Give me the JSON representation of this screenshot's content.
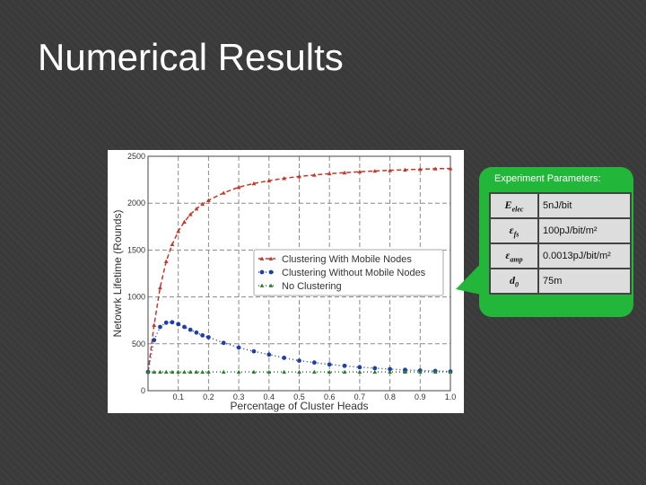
{
  "slide": {
    "title": "Numerical Results"
  },
  "params": {
    "title": "Experiment Parameters:",
    "rows": [
      {
        "symbol": "E_elec",
        "value": "5nJ/bit"
      },
      {
        "symbol": "ε_fs",
        "value": "100pJ/bit/m²"
      },
      {
        "symbol": "ε_amp",
        "value": "0.0013pJ/bit/m²"
      },
      {
        "symbol": "d_0",
        "value": "75m"
      }
    ]
  },
  "colors": {
    "background": "#3a3a3a",
    "callout": "#22b63a",
    "series_red": "#c0392b",
    "series_blue": "#1f3fa8",
    "series_green": "#2e7d32"
  },
  "chart_data": {
    "type": "line",
    "xlabel": "Percentage of Cluster Heads",
    "ylabel": "Netowrk Lifetime (Rounds)",
    "xlim": [
      0,
      1.0
    ],
    "ylim": [
      0,
      2500
    ],
    "xticks": [
      "0.1",
      "0.2",
      "0.3",
      "0.4",
      "0.5",
      "0.6",
      "0.7",
      "0.8",
      "0.9",
      "1.0"
    ],
    "xtick_values": [
      0.1,
      0.2,
      0.3,
      0.4,
      0.5,
      0.6,
      0.7,
      0.8,
      0.9,
      1.0
    ],
    "yticks": [
      "0",
      "500",
      "1000",
      "1500",
      "2000",
      "2500"
    ],
    "ytick_values": [
      0,
      500,
      1000,
      1500,
      2000,
      2500
    ],
    "grid": true,
    "legend_position": "center-right",
    "x": [
      0.0,
      0.02,
      0.04,
      0.06,
      0.08,
      0.1,
      0.12,
      0.14,
      0.16,
      0.18,
      0.2,
      0.25,
      0.3,
      0.35,
      0.4,
      0.45,
      0.5,
      0.55,
      0.6,
      0.65,
      0.7,
      0.75,
      0.8,
      0.85,
      0.9,
      0.95,
      1.0
    ],
    "series": [
      {
        "name": "Clustering With Mobile Nodes",
        "values": [
          200,
          700,
          1100,
          1380,
          1560,
          1700,
          1800,
          1880,
          1940,
          1990,
          2030,
          2110,
          2170,
          2210,
          2240,
          2265,
          2285,
          2300,
          2315,
          2325,
          2335,
          2343,
          2350,
          2356,
          2362,
          2367,
          2370
        ]
      },
      {
        "name": "Clustering Without Mobile Nodes",
        "values": [
          200,
          540,
          680,
          725,
          730,
          710,
          680,
          650,
          620,
          590,
          570,
          510,
          460,
          420,
          385,
          350,
          320,
          300,
          280,
          265,
          250,
          240,
          230,
          222,
          215,
          210,
          205
        ]
      },
      {
        "name": "No Clustering",
        "values": [
          200,
          200,
          200,
          200,
          200,
          200,
          200,
          200,
          200,
          200,
          200,
          200,
          200,
          200,
          200,
          200,
          200,
          200,
          200,
          200,
          200,
          200,
          200,
          200,
          200,
          200,
          200
        ]
      }
    ]
  }
}
